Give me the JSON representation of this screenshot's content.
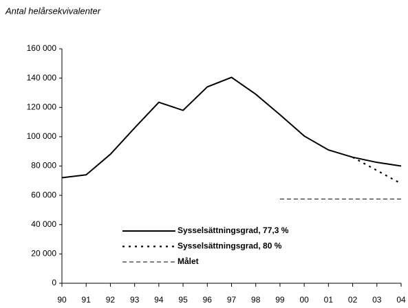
{
  "chart_data": {
    "type": "line",
    "ylabel": "Antal helårsekvivalenter",
    "categories": [
      "90",
      "91",
      "92",
      "93",
      "94",
      "95",
      "96",
      "97",
      "98",
      "99",
      "00",
      "01",
      "02",
      "03",
      "04"
    ],
    "series": [
      {
        "name": "Sysselsättningsgrad, 77,3 %",
        "color": "#000000",
        "style": "solid",
        "values": [
          72000,
          74000,
          88000,
          106000,
          123500,
          118000,
          134000,
          140500,
          129000,
          115000,
          100500,
          91000,
          86000,
          82500,
          80000
        ]
      },
      {
        "name": "Sysselsättningsgrad, 80 %",
        "color": "#000000",
        "style": "dotted",
        "values": [
          null,
          null,
          null,
          null,
          null,
          null,
          null,
          null,
          null,
          null,
          null,
          null,
          86000,
          77000,
          68000
        ]
      },
      {
        "name": "Målet",
        "color": "#000000",
        "style": "dashed",
        "values": [
          null,
          null,
          null,
          null,
          null,
          null,
          null,
          null,
          null,
          57500,
          57500,
          57500,
          57500,
          57500,
          57500
        ]
      }
    ],
    "ylim": [
      0,
      160000
    ],
    "yticks": [
      0,
      {
        "value": 20000,
        "label": "20 000"
      },
      {
        "value": 40000,
        "label": "40 000"
      },
      {
        "value": 60000,
        "label": "60 000"
      },
      {
        "value": 80000,
        "label": "80 000"
      },
      {
        "value": 100000,
        "label": "100 000"
      },
      {
        "value": 120000,
        "label": "120 000"
      },
      {
        "value": 140000,
        "label": "140 000"
      },
      {
        "value": 160000,
        "label": "160 000"
      }
    ],
    "grid": false
  }
}
